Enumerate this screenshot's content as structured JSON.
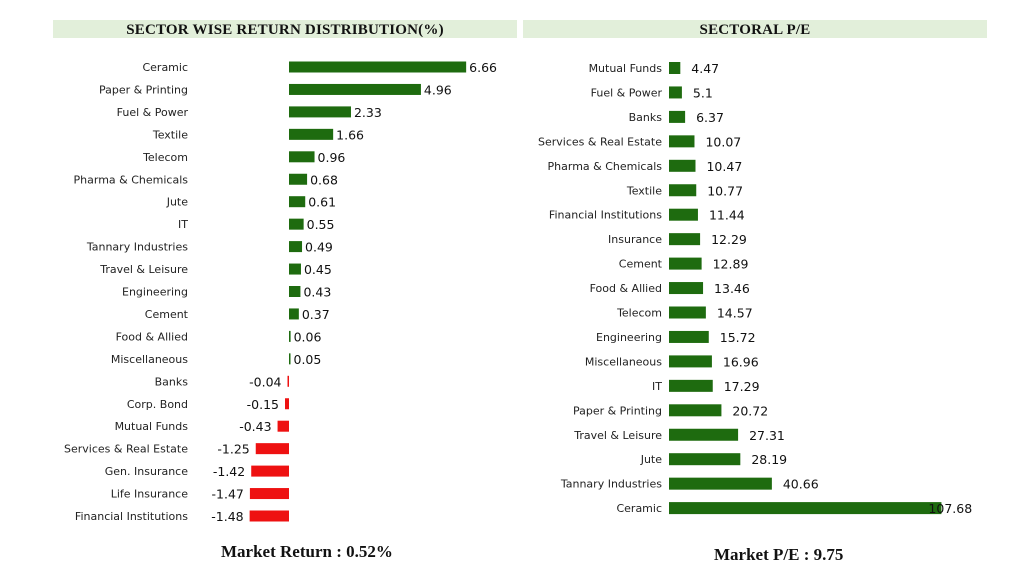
{
  "colors": {
    "positive": "#1e6b0f",
    "negative": "#ee1111",
    "header_bg": "#e2efda"
  },
  "chart_data": [
    {
      "type": "bar",
      "orientation": "horizontal",
      "title": "SECTOR WISE RETURN DISTRIBUTION(%)",
      "categories": [
        "Ceramic",
        "Paper & Printing",
        "Fuel & Power",
        "Textile",
        "Telecom",
        "Pharma & Chemicals",
        "Jute",
        "IT",
        "Tannary Industries",
        "Travel & Leisure",
        "Engineering",
        "Cement",
        "Food & Allied",
        "Miscellaneous",
        "Banks",
        "Corp. Bond",
        "Mutual Funds",
        "Services & Real Estate",
        "Gen. Insurance",
        "Life Insurance",
        "Financial Institutions"
      ],
      "values": [
        6.66,
        4.96,
        2.33,
        1.66,
        0.96,
        0.68,
        0.61,
        0.55,
        0.49,
        0.45,
        0.43,
        0.37,
        0.06,
        0.05,
        -0.04,
        -0.15,
        -0.43,
        -1.25,
        -1.42,
        -1.47,
        -1.48
      ],
      "value_labels": [
        "6.66",
        "4.96",
        "2.33",
        "1.66",
        "0.96",
        "0.68",
        "0.61",
        "0.55",
        "0.49",
        "0.45",
        "0.43",
        "0.37",
        "0.06",
        "0.05",
        "-0.04",
        "-0.15",
        "-0.43",
        "-1.25",
        "-1.42",
        "-1.47",
        "-1.48"
      ],
      "xlabel": "",
      "ylabel": "",
      "grid": false,
      "footer": "Market Return : 0.52%"
    },
    {
      "type": "bar",
      "orientation": "horizontal",
      "title": "SECTORAL P/E",
      "categories": [
        "Mutual Funds",
        "Fuel & Power",
        "Banks",
        "Services & Real Estate",
        "Pharma & Chemicals",
        "Textile",
        "Financial Institutions",
        "Insurance",
        "Cement",
        "Food & Allied",
        "Telecom",
        "Engineering",
        "Miscellaneous",
        "IT",
        "Paper & Printing",
        "Travel & Leisure",
        "Jute",
        "Tannary Industries",
        "Ceramic"
      ],
      "values": [
        4.47,
        5.1,
        6.37,
        10.07,
        10.47,
        10.77,
        11.44,
        12.29,
        12.89,
        13.46,
        14.57,
        15.72,
        16.96,
        17.29,
        20.72,
        27.31,
        28.19,
        40.66,
        107.68
      ],
      "value_labels": [
        "4.47",
        "5.1",
        "6.37",
        "10.07",
        "10.47",
        "10.77",
        "11.44",
        "12.29",
        "12.89",
        "13.46",
        "14.57",
        "15.72",
        "16.96",
        "17.29",
        "20.72",
        "27.31",
        "28.19",
        "40.66",
        "107.68"
      ],
      "xlabel": "",
      "ylabel": "",
      "grid": false,
      "footer": "Market P/E : 9.75"
    }
  ]
}
